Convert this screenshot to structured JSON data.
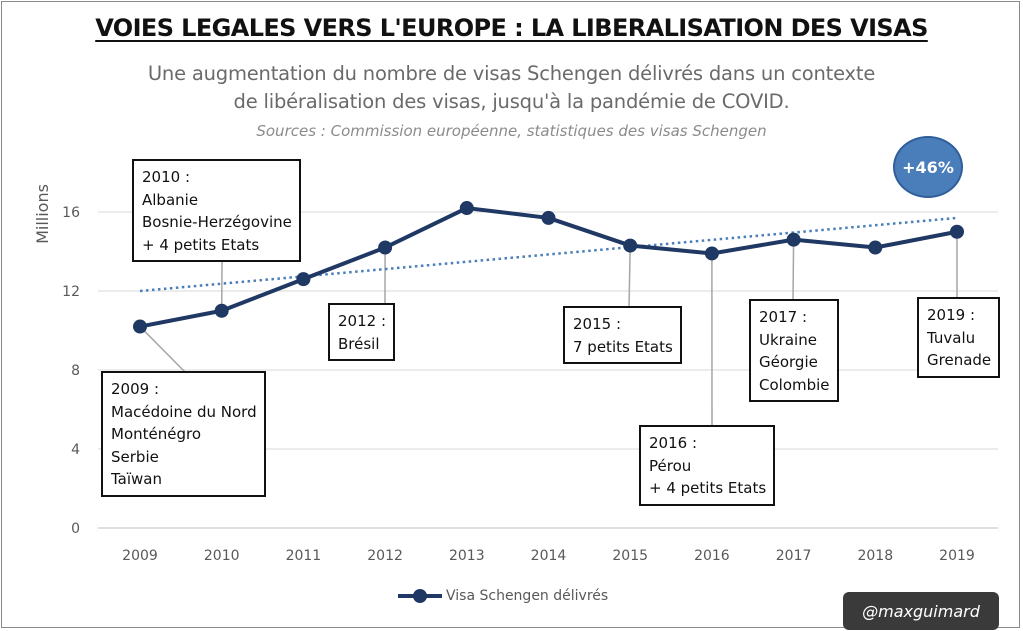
{
  "header": {
    "title": "VOIES LEGALES VERS L'EUROPE : LA LIBERALISATION DES VISAS",
    "subtitle_line1": "Une augmentation du nombre de visas Schengen délivrés dans un contexte",
    "subtitle_line2": "de libéralisation des visas, jusqu'à la pandémie de COVID.",
    "sources": "Sources : Commission européenne, statistiques des visas Schengen"
  },
  "badge": "+46%",
  "credit": "@maxguimard",
  "colors": {
    "series": "#1f3864",
    "trend": "#4a7ebb",
    "badge": "#4a7ebb"
  },
  "annotations": [
    {
      "year": "2009",
      "lines": [
        "2009 :",
        "Macédoine du Nord",
        "Monténégro",
        "Serbie",
        "Taïwan"
      ]
    },
    {
      "year": "2010",
      "lines": [
        "2010 :",
        "Albanie",
        "Bosnie-Herzégovine",
        "+ 4 petits Etats"
      ]
    },
    {
      "year": "2012",
      "lines": [
        "2012 :",
        "Brésil"
      ]
    },
    {
      "year": "2015",
      "lines": [
        "2015 :",
        "7 petits Etats"
      ]
    },
    {
      "year": "2016",
      "lines": [
        "2016 :",
        "Pérou",
        "+ 4 petits Etats"
      ]
    },
    {
      "year": "2017",
      "lines": [
        "2017 :",
        "Ukraine",
        "Géorgie",
        "Colombie"
      ]
    },
    {
      "year": "2019",
      "lines": [
        "2019 :",
        "Tuvalu",
        "Grenade"
      ]
    }
  ],
  "chart_data": {
    "type": "line",
    "title": "VOIES LEGALES VERS L'EUROPE : LA LIBERALISATION DES VISAS",
    "ylabel": "Millions",
    "xlabel": "",
    "categories": [
      "2009",
      "2010",
      "2011",
      "2012",
      "2013",
      "2014",
      "2015",
      "2016",
      "2017",
      "2018",
      "2019"
    ],
    "series": [
      {
        "name": "Visa Schengen délivrés",
        "values": [
          10.2,
          11.0,
          12.6,
          14.2,
          16.2,
          15.7,
          14.3,
          13.9,
          14.6,
          14.2,
          15.0
        ]
      }
    ],
    "trendline": {
      "type": "linear-dotted",
      "start": 12.0,
      "end": 15.7
    },
    "yticks": [
      0,
      4,
      8,
      12,
      16
    ],
    "ylim": [
      0,
      18
    ],
    "grid": true,
    "legend": "bottom-center"
  }
}
